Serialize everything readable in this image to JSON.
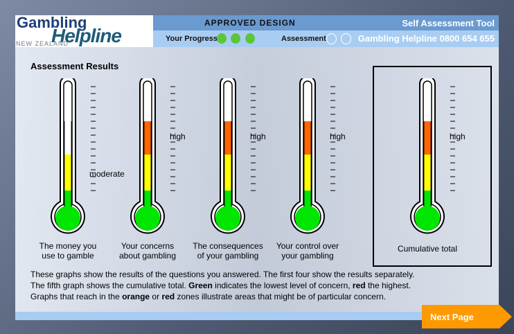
{
  "header": {
    "logo_line1": "Gambling",
    "logo_line2": "Helpline",
    "logo_line3": "NEW ZEALAND",
    "approved": "APPROVED DESIGN",
    "tool_title": "Self Assessment Tool",
    "progress_label": "Your Progress",
    "progress_steps": [
      true,
      true,
      true
    ],
    "assessment_label": "Assessment",
    "assessment_steps": [
      false,
      false
    ],
    "phone": "Gambling Helpline 0800 654 655"
  },
  "main": {
    "title": "Assessment Results",
    "thermometers": [
      {
        "caption1": "The money you",
        "caption2": "use to gamble",
        "level_label": "moderate",
        "level": "yellow"
      },
      {
        "caption1": "Your concerns",
        "caption2": "about gambling",
        "level_label": "high",
        "level": "orange"
      },
      {
        "caption1": "The consequences",
        "caption2": "of your gambling",
        "level_label": "high",
        "level": "orange"
      },
      {
        "caption1": "Your control over",
        "caption2": "your gambling",
        "level_label": "high",
        "level": "orange"
      },
      {
        "caption1": "Cumulative total",
        "caption2": "",
        "level_label": "high",
        "level": "orange"
      }
    ],
    "desc_line1": "These graphs show the results of the questions you answered. The first four show the results separately.",
    "desc_line2a": "The fifth graph shows the cumulative total. ",
    "desc_green": "Green",
    "desc_line2b": " indicates the lowest level of concern, ",
    "desc_red": "red",
    "desc_line2c": " the highest.",
    "desc_line3a": "Graphs that reach in the ",
    "desc_orange": "orange",
    "desc_line3b": " or ",
    "desc_red2": "red",
    "desc_line3c": " zones illustrate areas that might be of particular concern."
  },
  "colors": {
    "green": "#00e600",
    "yellow": "#ffff00",
    "orange": "#ff6600",
    "header_dark": "#6a9ad0",
    "header_light": "#a9cdf2",
    "next": "#ff9900"
  },
  "footer": {
    "next_label": "Next Page"
  }
}
